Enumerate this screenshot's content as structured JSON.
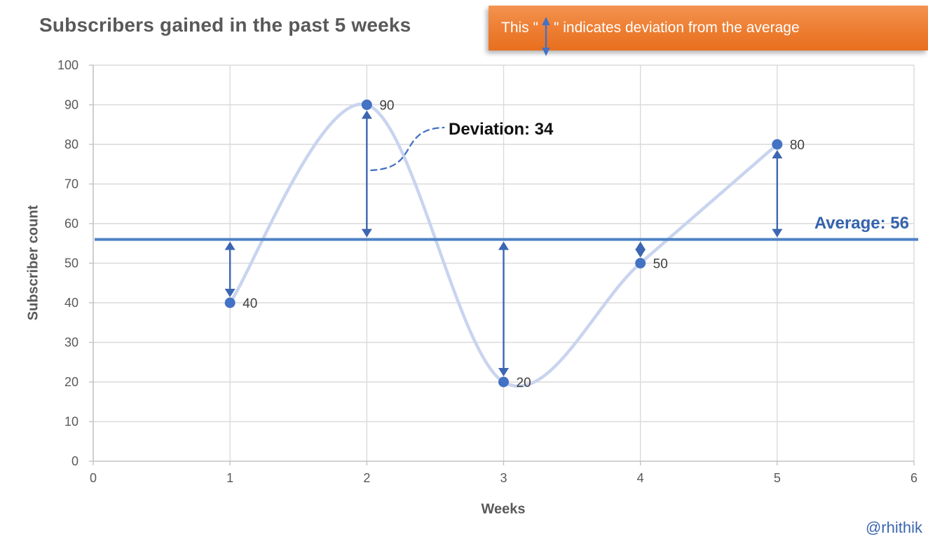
{
  "title": "Subscribers gained in the past 5 weeks",
  "banner": {
    "prefix": "This \"",
    "suffix": "\" indicates deviation from the average",
    "arrow_icon": "double-vertical-arrow",
    "bg_color": "#ED7D31",
    "arrow_color": "#4472C4"
  },
  "watermark": "@rhithik",
  "chart_data": {
    "type": "line",
    "x": [
      1,
      2,
      3,
      4,
      5
    ],
    "values": [
      40,
      90,
      20,
      50,
      80
    ],
    "point_labels": [
      "40",
      "90",
      "20",
      "50",
      "80"
    ],
    "average": 56,
    "average_label": "Average: 56",
    "deviation_annotation": {
      "text": "Deviation: 34",
      "week": 2,
      "value": 34
    },
    "title": "Subscribers gained in the past 5 weeks",
    "xlabel": "Weeks",
    "ylabel": "Subscriber count",
    "xlim": [
      0,
      6
    ],
    "ylim": [
      0,
      100
    ],
    "x_ticks": [
      0,
      1,
      2,
      3,
      4,
      5,
      6
    ],
    "y_ticks": [
      0,
      10,
      20,
      30,
      40,
      50,
      60,
      70,
      80,
      90,
      100
    ],
    "grid": true,
    "legend": "none",
    "colors": {
      "curve": "#C9D4EF",
      "point": "#4472C4",
      "arrow": "#3C66B2",
      "average_line": "#4E82C4",
      "average_text": "#3462AD",
      "gridline": "#DADADA",
      "axis_line": "#C3C3C3",
      "axis_text": "#595959",
      "value_text": "#3F3F3F",
      "callout_dash": "#4472C4"
    }
  }
}
